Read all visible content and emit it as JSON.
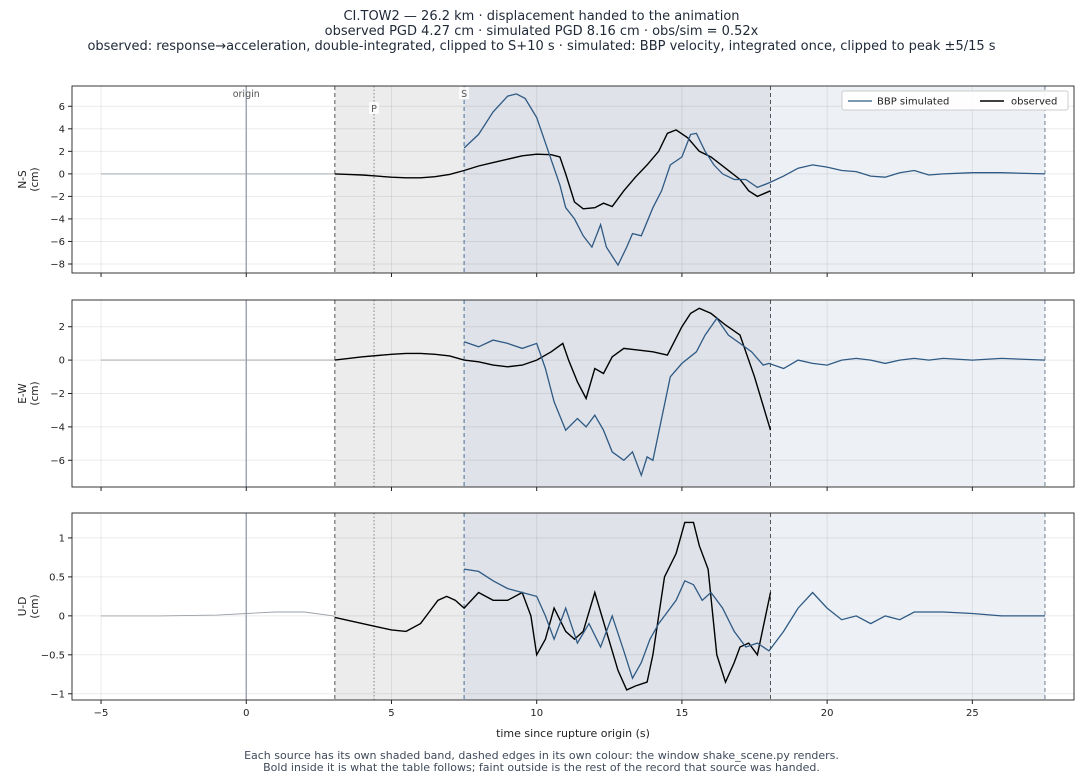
{
  "header": {
    "title_line1": "CI.TOW2  —  26.2 km   ·   displacement handed to the animation",
    "title_line2": "observed PGD 4.27 cm   ·   simulated PGD 8.16 cm   ·   obs/sim = 0.52x",
    "title_line3": "observed: response→acceleration, double-integrated, clipped to S+10 s   ·   simulated: BBP velocity, integrated once, clipped to peak ±5/15 s"
  },
  "footer": {
    "line1": "Each source has its own shaded band, dashed edges in its own colour: the window shake_scene.py renders.",
    "line2": "Bold inside it is what the table follows;   faint outside is the rest of the record that source was handed."
  },
  "colors": {
    "observed": "#000000",
    "simulated": "#2f5a84",
    "obs_band": "#ececec",
    "sim_band": "#dfe2e8",
    "sim_band_outer": "#edf1f5",
    "faint_obs": "#9aa0a6"
  },
  "chart_data": {
    "type": "line",
    "xlabel": "time since rupture origin (s)",
    "xlim": [
      -6,
      28.5
    ],
    "xticks": [
      -5,
      0,
      5,
      10,
      15,
      20,
      25
    ],
    "legend": {
      "placement": "top-right",
      "entries": [
        "BBP simulated",
        "observed"
      ]
    },
    "markers": [
      {
        "label": "origin",
        "x": 0
      },
      {
        "label": "P",
        "x": 4.4
      },
      {
        "label": "S",
        "x": 7.5
      }
    ],
    "observed_window": [
      3.05,
      18.05
    ],
    "simulated_window": [
      7.5,
      27.5
    ],
    "panels": [
      {
        "ylabel": "N-S\n(cm)",
        "ylim": [
          -8.8,
          7.8
        ],
        "yticks": [
          -8,
          -6,
          -4,
          -2,
          0,
          2,
          4,
          6
        ],
        "series": [
          {
            "name": "observed",
            "x": [
              -5,
              -3,
              -1,
              0,
              1,
              2,
              3,
              3.05,
              3.5,
              4,
              4.5,
              5,
              5.5,
              6,
              6.5,
              7,
              7.5,
              8,
              8.5,
              9,
              9.5,
              10,
              10.5,
              10.8,
              11,
              11.3,
              11.6,
              12,
              12.3,
              12.6,
              13,
              13.4,
              13.8,
              14.2,
              14.5,
              14.8,
              15.2,
              15.6,
              16,
              16.5,
              17,
              17.3,
              17.6,
              18.05
            ],
            "y": [
              0,
              0,
              0,
              0,
              0,
              0,
              0,
              0,
              -0.05,
              -0.1,
              -0.2,
              -0.3,
              -0.35,
              -0.35,
              -0.25,
              -0.05,
              0.3,
              0.7,
              1.0,
              1.3,
              1.6,
              1.75,
              1.7,
              1.5,
              0,
              -2.5,
              -3.1,
              -3.0,
              -2.6,
              -2.9,
              -1.5,
              -0.3,
              0.8,
              2.0,
              3.6,
              3.9,
              3.2,
              2.0,
              1.5,
              0.5,
              -0.5,
              -1.5,
              -2.0,
              -1.5
            ]
          },
          {
            "name": "BBP simulated",
            "x": [
              7.5,
              8,
              8.5,
              9,
              9.3,
              9.6,
              10,
              10.4,
              10.8,
              11,
              11.3,
              11.6,
              11.9,
              12.2,
              12.4,
              12.6,
              12.8,
              13.1,
              13.3,
              13.6,
              14,
              14.3,
              14.6,
              15,
              15.3,
              15.5,
              15.8,
              16.1,
              16.4,
              16.8,
              17.2,
              17.6,
              18,
              18.5,
              19,
              19.5,
              20,
              20.5,
              21,
              21.5,
              22,
              22.5,
              23,
              23.5,
              24,
              25,
              26,
              27.5
            ],
            "y": [
              2.3,
              3.5,
              5.5,
              6.9,
              7.1,
              6.7,
              5.0,
              2.0,
              -1.0,
              -3.0,
              -4.0,
              -5.5,
              -6.5,
              -4.5,
              -6.5,
              -7.3,
              -8.1,
              -6.5,
              -5.3,
              -5.5,
              -3.0,
              -1.5,
              0.8,
              1.5,
              3.5,
              3.6,
              2.0,
              0.8,
              0.0,
              -0.5,
              -0.5,
              -1.2,
              -0.8,
              -0.2,
              0.5,
              0.8,
              0.6,
              0.3,
              0.2,
              -0.2,
              -0.3,
              0.1,
              0.3,
              -0.1,
              0.0,
              0.1,
              0.1,
              0.0
            ]
          }
        ]
      },
      {
        "ylabel": "E-W\n(cm)",
        "ylim": [
          -7.6,
          3.6
        ],
        "yticks": [
          -6,
          -4,
          -2,
          0,
          2
        ],
        "series": [
          {
            "name": "observed",
            "x": [
              -5,
              -3,
              -1,
              0,
              1,
              2,
              3,
              3.05,
              4,
              5,
              5.5,
              6,
              6.5,
              7,
              7.5,
              8,
              8.5,
              9,
              9.5,
              10,
              10.5,
              10.9,
              11.1,
              11.4,
              11.7,
              12,
              12.3,
              12.6,
              13,
              13.5,
              14,
              14.5,
              15,
              15.3,
              15.6,
              16,
              16.5,
              17,
              17.5,
              18.05
            ],
            "y": [
              0,
              0,
              0,
              0,
              0,
              0,
              0,
              0,
              0.2,
              0.35,
              0.4,
              0.4,
              0.35,
              0.25,
              0,
              -0.1,
              -0.3,
              -0.4,
              -0.3,
              0.0,
              0.5,
              1.0,
              0,
              -1.3,
              -2.3,
              -0.5,
              -0.8,
              0.2,
              0.7,
              0.6,
              0.5,
              0.3,
              2.0,
              2.8,
              3.1,
              2.8,
              2.1,
              1.5,
              -1.0,
              -4.2
            ]
          },
          {
            "name": "BBP simulated",
            "x": [
              7.5,
              8,
              8.5,
              9,
              9.5,
              10,
              10.3,
              10.6,
              11,
              11.4,
              11.7,
              12,
              12.3,
              12.6,
              13,
              13.3,
              13.6,
              13.8,
              14,
              14.3,
              14.6,
              15,
              15.5,
              15.8,
              16.2,
              16.6,
              17,
              17.4,
              17.8,
              18,
              18.5,
              19,
              19.5,
              20,
              20.5,
              21,
              21.5,
              22,
              22.5,
              23,
              23.5,
              24,
              25,
              26,
              27.5
            ],
            "y": [
              1.1,
              0.8,
              1.2,
              1.0,
              0.7,
              1.0,
              -0.5,
              -2.5,
              -4.2,
              -3.5,
              -4.0,
              -3.3,
              -4.2,
              -5.5,
              -6.0,
              -5.5,
              -6.9,
              -5.8,
              -6.0,
              -3.5,
              -1.0,
              -0.2,
              0.5,
              1.5,
              2.5,
              1.5,
              1.0,
              0.5,
              -0.3,
              -0.2,
              -0.5,
              0.0,
              -0.2,
              -0.3,
              0.0,
              0.1,
              0.0,
              -0.2,
              0.0,
              0.1,
              0.0,
              0.1,
              0.0,
              0.1,
              0.0
            ]
          }
        ]
      },
      {
        "ylabel": "U-D\n(cm)",
        "ylim": [
          -1.08,
          1.32
        ],
        "yticks": [
          -1.0,
          -0.5,
          0.0,
          0.5,
          1.0
        ],
        "series": [
          {
            "name": "observed",
            "x": [
              -5,
              -3,
              -1,
              0,
              1,
              2,
              3,
              3.05,
              4,
              4.5,
              5,
              5.5,
              6,
              6.3,
              6.6,
              6.9,
              7.2,
              7.5,
              8,
              8.5,
              9,
              9.5,
              9.8,
              10,
              10.3,
              10.6,
              11,
              11.3,
              11.6,
              12,
              12.4,
              12.8,
              13.1,
              13.4,
              13.8,
              14,
              14.4,
              14.8,
              15.1,
              15.4,
              15.6,
              15.9,
              16.2,
              16.5,
              16.8,
              17,
              17.3,
              17.6,
              18.05
            ],
            "y": [
              0,
              0,
              0.01,
              0.03,
              0.05,
              0.05,
              0,
              -0.02,
              -0.1,
              -0.14,
              -0.18,
              -0.2,
              -0.1,
              0.05,
              0.2,
              0.25,
              0.2,
              0.1,
              0.3,
              0.2,
              0.2,
              0.3,
              0.0,
              -0.5,
              -0.3,
              0.1,
              -0.2,
              -0.3,
              -0.2,
              0.3,
              -0.2,
              -0.7,
              -0.95,
              -0.9,
              -0.85,
              -0.5,
              0.5,
              0.8,
              1.2,
              1.2,
              0.9,
              0.6,
              -0.5,
              -0.85,
              -0.6,
              -0.4,
              -0.35,
              -0.5,
              0.3
            ]
          },
          {
            "name": "BBP simulated",
            "x": [
              7.5,
              8,
              8.5,
              9,
              9.5,
              10,
              10.3,
              10.6,
              11,
              11.4,
              11.8,
              12.2,
              12.6,
              13,
              13.3,
              13.6,
              13.9,
              14.2,
              14.5,
              14.8,
              15.1,
              15.4,
              15.7,
              16,
              16.4,
              16.8,
              17.2,
              17.6,
              18,
              18.5,
              19,
              19.5,
              20,
              20.5,
              21,
              21.5,
              22,
              22.5,
              23,
              24,
              25,
              26,
              27.5
            ],
            "y": [
              0.6,
              0.57,
              0.45,
              0.35,
              0.3,
              0.25,
              0.0,
              -0.3,
              0.1,
              -0.35,
              -0.1,
              -0.4,
              0.0,
              -0.45,
              -0.8,
              -0.6,
              -0.3,
              -0.1,
              0.05,
              0.2,
              0.45,
              0.4,
              0.2,
              0.3,
              0.1,
              -0.2,
              -0.4,
              -0.35,
              -0.45,
              -0.2,
              0.1,
              0.3,
              0.1,
              -0.05,
              0.0,
              -0.1,
              0.0,
              -0.05,
              0.05,
              0.05,
              0.03,
              0.0,
              0.0
            ]
          }
        ]
      }
    ]
  }
}
